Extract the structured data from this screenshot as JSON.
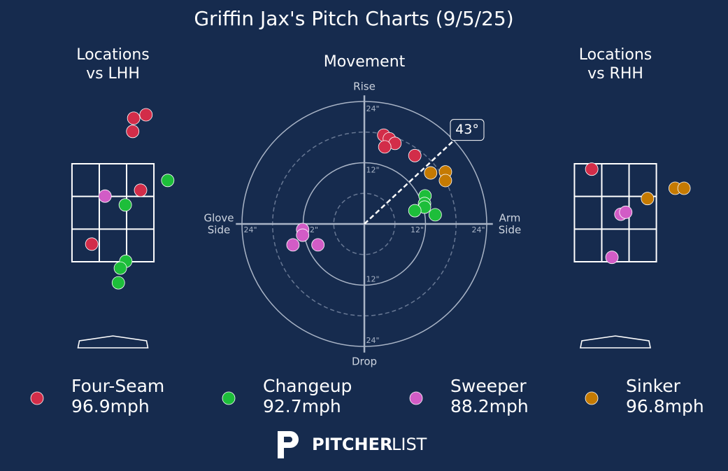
{
  "title": "Griffin Jax's Pitch Charts (9/5/25)",
  "pitches": [
    {
      "name": "Four-Seam",
      "speed": "96.9mph",
      "color": "#d22d49"
    },
    {
      "name": "Changeup",
      "speed": "92.7mph",
      "color": "#1dbe3a"
    },
    {
      "name": "Sweeper",
      "speed": "88.2mph",
      "color": "#d25cc6"
    },
    {
      "name": "Sinker",
      "speed": "96.8mph",
      "color": "#c57a02"
    }
  ],
  "chart_data": [
    {
      "type": "scatter",
      "title": [
        "Locations",
        "vs LHH"
      ],
      "xlim": [
        -1.75,
        1.75
      ],
      "ylim": [
        -0.3,
        4.8
      ],
      "strike_zone": {
        "x": [
          -0.83,
          0.83
        ],
        "y": [
          1.5,
          3.5
        ]
      },
      "series": [
        {
          "x": [
            0.67,
            0.42,
            0.4,
            0.56,
            -0.43
          ],
          "y": [
            4.5,
            4.43,
            4.16,
            2.96,
            1.86
          ]
        },
        {
          "x": [
            1.11,
            0.25,
            0.26,
            0.15,
            0.11
          ],
          "y": [
            3.16,
            2.66,
            1.51,
            1.37,
            1.07
          ]
        },
        {
          "x": [
            -0.16
          ],
          "y": [
            2.84
          ]
        },
        {
          "x": [],
          "y": []
        }
      ]
    },
    {
      "type": "polar",
      "title": "Movement",
      "rlim": [
        0,
        24
      ],
      "rticks": [
        {
          "value": 12,
          "label": "12\""
        },
        {
          "value": 24,
          "label": "24\""
        }
      ],
      "rgrid_minor": [
        6,
        18
      ],
      "axis_labels": {
        "top": "Rise",
        "bottom": "Drop",
        "left": [
          "Glove",
          "Side"
        ],
        "right": [
          "Arm",
          "Side"
        ]
      },
      "arm_angle": {
        "value": 43,
        "label": "43°"
      },
      "series": [
        {
          "x": [
            3.8,
            4.9,
            6.0,
            4.0,
            9.9
          ],
          "y": [
            17.4,
            16.7,
            15.8,
            15.1,
            13.4
          ]
        },
        {
          "x": [
            11.9,
            11.8,
            11.8,
            9.9,
            13.9
          ],
          "y": [
            5.5,
            4.0,
            3.3,
            2.6,
            1.8
          ]
        },
        {
          "x": [
            -12.1,
            -12.1,
            -14.0,
            -9.1
          ],
          "y": [
            -1.1,
            -2.2,
            -4.1,
            -4.1
          ]
        },
        {
          "x": [
            13.0,
            15.9,
            15.9
          ],
          "y": [
            10.0,
            10.2,
            8.5
          ]
        }
      ]
    },
    {
      "type": "scatter",
      "title": [
        "Locations",
        "vs RHH"
      ],
      "xlim": [
        -1.75,
        1.75
      ],
      "ylim": [
        -0.3,
        4.8
      ],
      "strike_zone": {
        "x": [
          -0.83,
          0.83
        ],
        "y": [
          1.5,
          3.5
        ]
      },
      "series": [
        {
          "x": [
            -0.48
          ],
          "y": [
            3.39
          ]
        },
        {
          "x": [],
          "y": []
        },
        {
          "x": [
            0.11,
            0.21,
            -0.07
          ],
          "y": [
            2.47,
            2.51,
            1.59
          ]
        },
        {
          "x": [
            0.65,
            1.21,
            1.39
          ],
          "y": [
            2.79,
            3.0,
            3.0
          ]
        }
      ]
    }
  ],
  "logo": [
    "PITCHER",
    "LIST"
  ]
}
